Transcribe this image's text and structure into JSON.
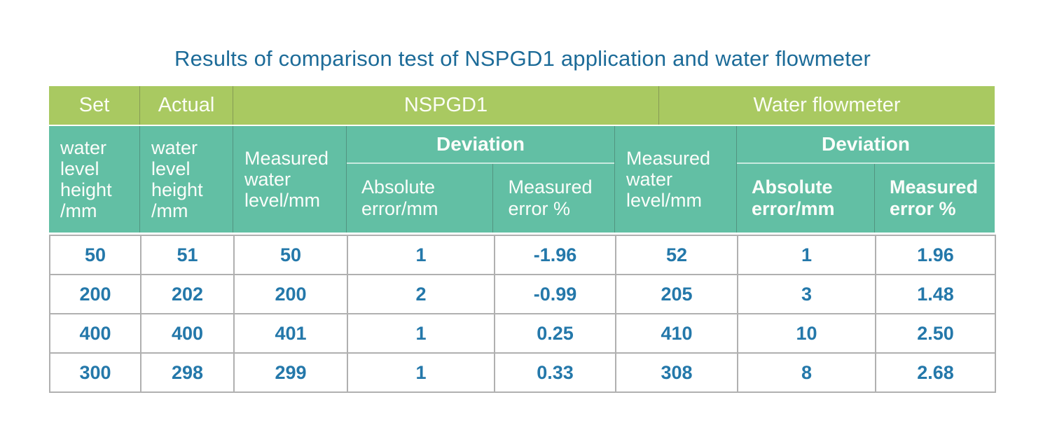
{
  "chart_data": {
    "type": "table",
    "title": "Results of comparison test of NSPGD1 application and water flowmeter",
    "header": {
      "top": {
        "set": "Set",
        "actual": "Actual",
        "nspgd1": "NSPGD1",
        "water_flowmeter": "Water flowmeter"
      },
      "sub": {
        "set_detail": "water level height /mm",
        "actual_detail": "water level height /mm",
        "nspgd1_measured": "Measured water level/mm",
        "nspgd1_deviation": "Deviation",
        "nspgd1_absolute_error": "Absolute error/mm",
        "nspgd1_measured_error": "Measured error %",
        "wf_measured": "Measured water level/mm",
        "wf_deviation": "Deviation",
        "wf_absolute_error": "Absolute error/mm",
        "wf_measured_error": "Measured error %"
      }
    },
    "columns_flat": [
      "Set water level height /mm",
      "Actual water level height /mm",
      "NSPGD1 Measured water level/mm",
      "NSPGD1 Deviation Absolute error/mm",
      "NSPGD1 Deviation Measured error %",
      "Water flowmeter Measured water level/mm",
      "Water flowmeter Deviation Absolute error/mm",
      "Water flowmeter Deviation Measured error %"
    ],
    "rows": [
      [
        "50",
        "51",
        "50",
        "1",
        "-1.96",
        "52",
        "1",
        "1.96"
      ],
      [
        "200",
        "202",
        "200",
        "2",
        "-0.99",
        "205",
        "3",
        "1.48"
      ],
      [
        "400",
        "400",
        "401",
        "1",
        "0.25",
        "410",
        "10",
        "2.50"
      ],
      [
        "300",
        "298",
        "299",
        "1",
        "0.33",
        "308",
        "8",
        "2.68"
      ]
    ],
    "layout": {
      "legend": "none",
      "grid": "table-borders"
    }
  },
  "colors": {
    "header_green": "#a9c961",
    "header_teal": "#62bfa4",
    "title_text": "#1c6b98",
    "data_text": "#2478aa",
    "header_text": "#fbfdfa",
    "grid_line": "#b0b0b0"
  }
}
